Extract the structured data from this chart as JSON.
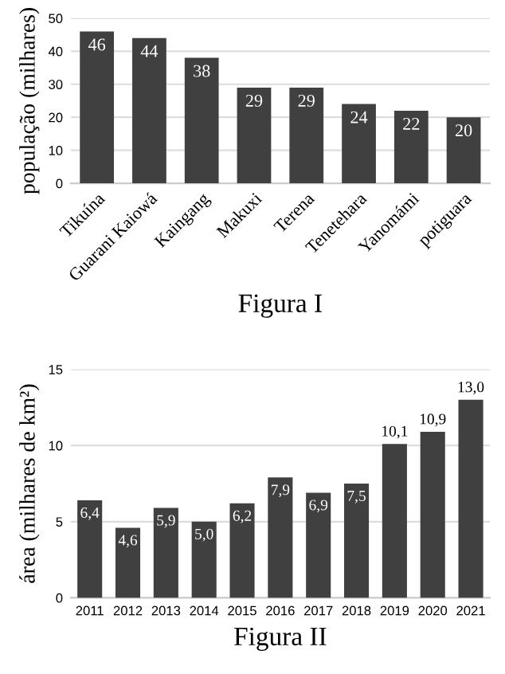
{
  "chart_data": [
    {
      "type": "bar",
      "xlabel": "Figura I",
      "ylabel": "população (milhares)",
      "categories": [
        "Tikuína",
        "Guarani Kaiowá",
        "Kaingang",
        "Makuxi",
        "Terena",
        "Tenetehara",
        "Yanomámi",
        "potiguara"
      ],
      "values": [
        46,
        44,
        38,
        29,
        29,
        24,
        22,
        20
      ],
      "color": "#404040",
      "ylim": [
        0,
        50
      ],
      "yticks": [
        0,
        10,
        20,
        30,
        40,
        50
      ],
      "grid": "y",
      "data_labels": true
    },
    {
      "type": "bar",
      "xlabel": "Figura II",
      "ylabel": "área (milhares de km²)",
      "categories": [
        "2011",
        "2012",
        "2013",
        "2014",
        "2015",
        "2016",
        "2017",
        "2018",
        "2019",
        "2020",
        "2021"
      ],
      "values": [
        6.4,
        4.6,
        5.9,
        5.0,
        6.2,
        7.9,
        6.9,
        7.5,
        10.1,
        10.9,
        13.0
      ],
      "value_labels": [
        "6,4",
        "4,6",
        "5,9",
        "5,0",
        "6,2",
        "7,9",
        "6,9",
        "7,5",
        "10,1",
        "10,9",
        "13,0"
      ],
      "color": "#404040",
      "ylim": [
        0,
        15
      ],
      "yticks": [
        0,
        5,
        10,
        15
      ],
      "grid": "y"
    }
  ]
}
